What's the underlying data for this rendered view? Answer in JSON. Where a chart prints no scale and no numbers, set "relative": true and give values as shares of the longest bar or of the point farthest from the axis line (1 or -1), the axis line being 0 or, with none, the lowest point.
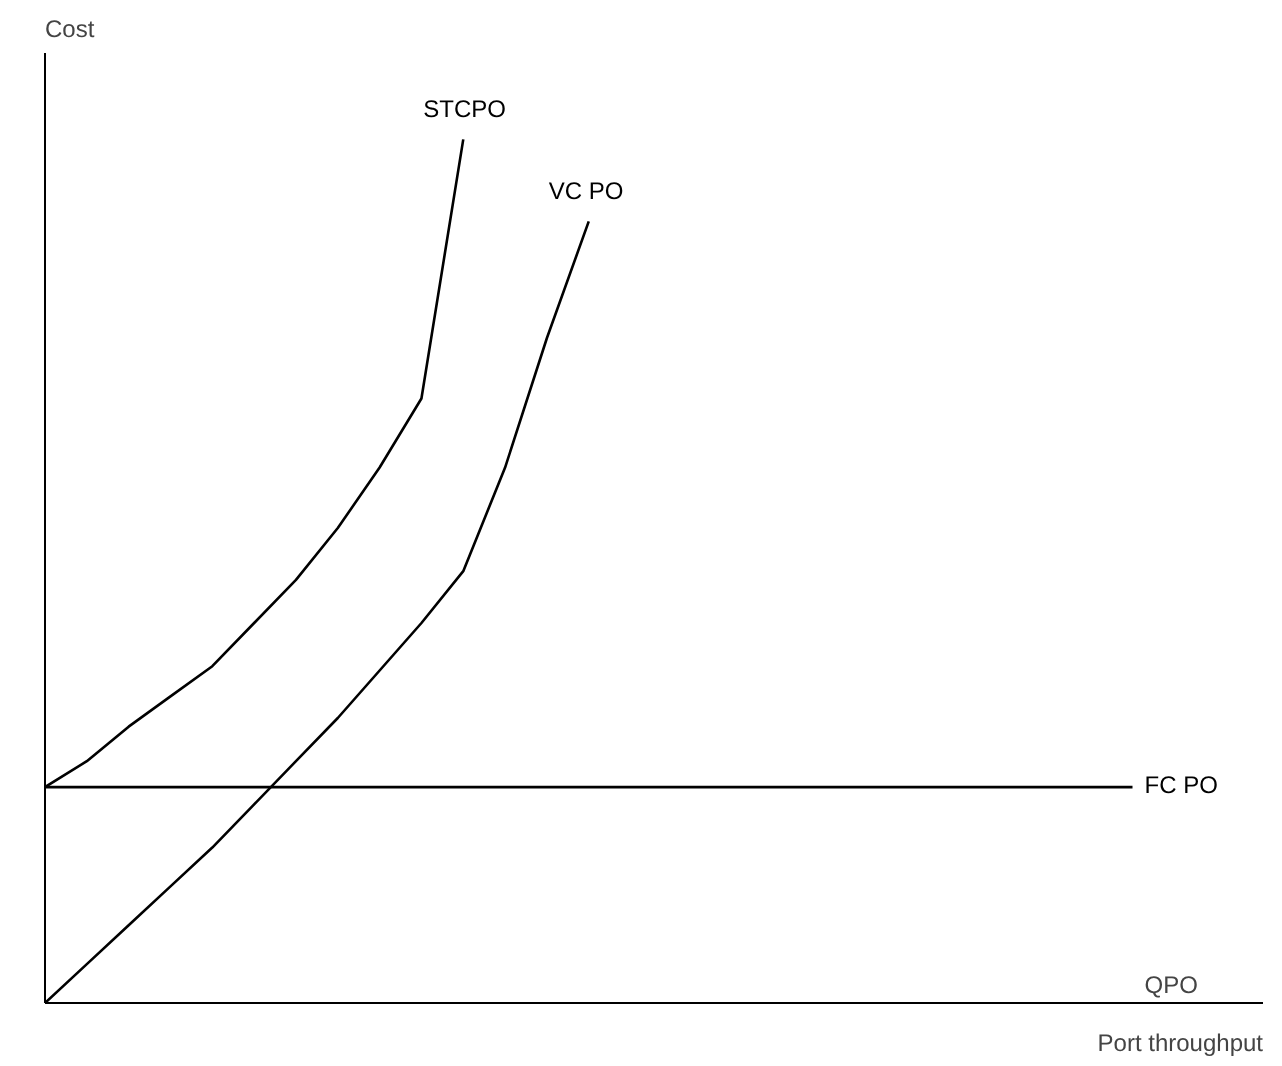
{
  "chart_data": {
    "type": "line",
    "relative": true,
    "xlabel": "Port throughput",
    "ylabel": "Cost",
    "annotations": [
      "QPO"
    ],
    "marker": "none",
    "line_style": "solid",
    "categories": [
      null,
      null,
      null,
      null,
      null,
      null,
      null,
      null,
      null,
      null,
      null,
      null,
      null,
      null,
      null,
      null,
      null,
      null,
      null,
      null,
      null,
      null,
      null,
      null,
      null,
      null,
      null
    ],
    "series": [
      {
        "name": "STCPO",
        "color": "#000000",
        "values": [
          0.25,
          0.28,
          0.32,
          0.355,
          0.39,
          0.44,
          0.49,
          0.55,
          0.62,
          0.7,
          1.0,
          null,
          null,
          null,
          null,
          null,
          null,
          null,
          null,
          null,
          null,
          null,
          null,
          null,
          null,
          null,
          null
        ]
      },
      {
        "name": "VC PO",
        "color": "#000000",
        "values": [
          0,
          0.045,
          0.09,
          0.135,
          0.18,
          0.23,
          0.28,
          0.33,
          0.385,
          0.44,
          0.5,
          0.62,
          0.77,
          0.905,
          null,
          null,
          null,
          null,
          null,
          null,
          null,
          null,
          null,
          null,
          null,
          null,
          null
        ]
      },
      {
        "name": "FC PO",
        "color": "#000000",
        "values": [
          0.25,
          0.25,
          0.25,
          0.25,
          0.25,
          0.25,
          0.25,
          0.25,
          0.25,
          0.25,
          0.25,
          0.25,
          0.25,
          0.25,
          0.25,
          0.25,
          0.25,
          0.25,
          0.25,
          0.25,
          0.25,
          0.25,
          0.25,
          0.25,
          0.25,
          0.25,
          0.25
        ]
      }
    ]
  }
}
